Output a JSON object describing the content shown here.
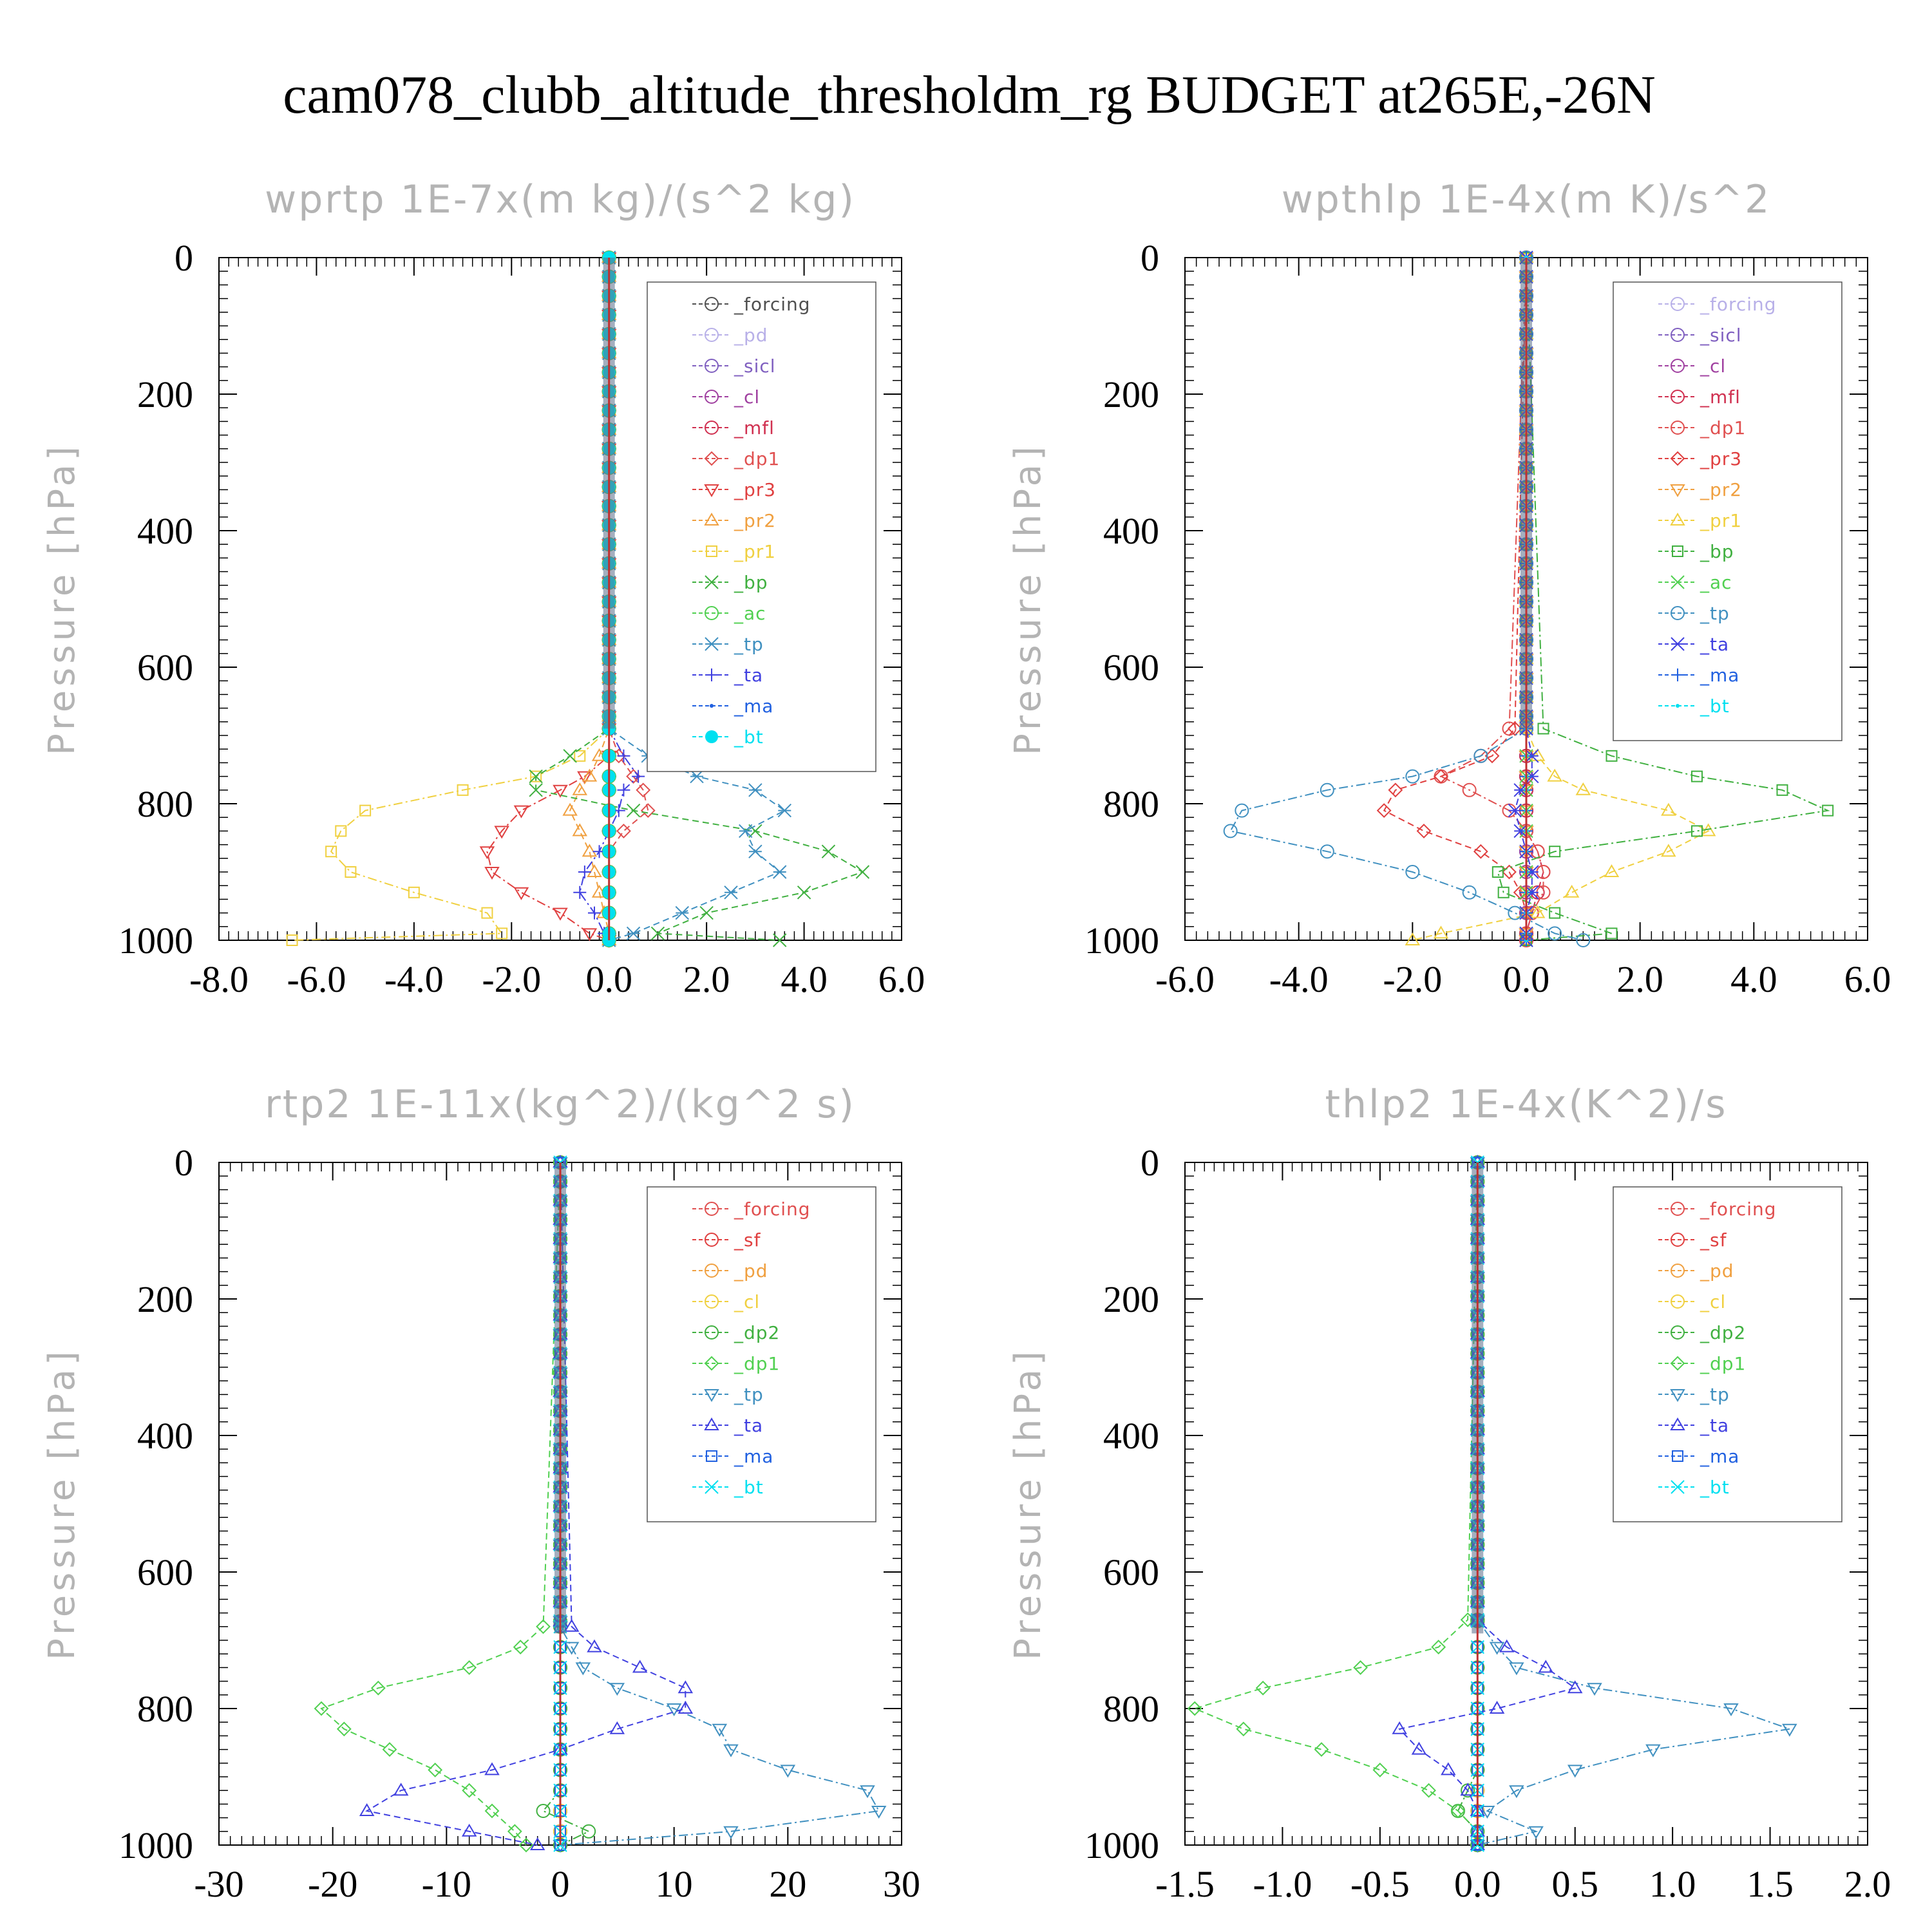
{
  "title": "cam078_clubb_altitude_thresholdm_rg  BUDGET at265E,-26N",
  "chart_data": [
    {
      "type": "line",
      "title": "wprtp  1E-7x(m kg)/(s^2 kg)",
      "ylabel": "Pressure [hPa]",
      "xlim": [
        -8,
        6
      ],
      "ylim": [
        1000,
        0
      ],
      "xticks": [
        "-8.0",
        "-6.0",
        "-4.0",
        "-2.0",
        "0.0",
        "2.0",
        "4.0",
        "6.0"
      ],
      "yticks": [
        "0",
        "200",
        "400",
        "600",
        "800",
        "1000"
      ],
      "y": [
        690,
        730,
        760,
        780,
        810,
        840,
        870,
        900,
        930,
        960,
        990,
        1000
      ],
      "series": [
        {
          "name": "_forcing",
          "color": "#505050",
          "values": [
            0,
            0,
            0,
            0,
            0,
            0,
            0,
            0,
            0,
            0,
            0,
            0
          ]
        },
        {
          "name": "_pd",
          "color": "#b8b0e8",
          "values": [
            0,
            0,
            0,
            0,
            0,
            0,
            0,
            0,
            0,
            0,
            0,
            0
          ]
        },
        {
          "name": "_sicl",
          "color": "#8060c0",
          "values": [
            0,
            0,
            0,
            0,
            0,
            0,
            0,
            0,
            0,
            0,
            0,
            0
          ]
        },
        {
          "name": "_cl",
          "color": "#a040a0",
          "values": [
            0,
            0,
            0,
            0,
            0,
            0,
            0,
            0,
            0,
            0,
            0,
            0
          ]
        },
        {
          "name": "_mfl",
          "color": "#d03050",
          "values": [
            0,
            0,
            0,
            0,
            0,
            0,
            0,
            0,
            0,
            0,
            0,
            0
          ]
        },
        {
          "name": "_dp1",
          "color": "#e05050",
          "values": [
            0,
            0.2,
            0.5,
            0.7,
            0.8,
            0.3,
            0,
            0,
            0,
            0,
            0,
            0
          ]
        },
        {
          "name": "_pr3",
          "color": "#e04040",
          "values": [
            0,
            0,
            -0.5,
            -1.0,
            -1.8,
            -2.2,
            -2.5,
            -2.4,
            -1.8,
            -1.0,
            -0.4,
            0
          ]
        },
        {
          "name": "_pr2",
          "color": "#f0a040",
          "values": [
            0,
            -0.2,
            -0.4,
            -0.6,
            -0.8,
            -0.6,
            -0.4,
            -0.3,
            -0.2,
            -0.1,
            0,
            0
          ]
        },
        {
          "name": "_pr1",
          "color": "#f0d040",
          "values": [
            0,
            -0.6,
            -1.5,
            -3.0,
            -5.0,
            -5.5,
            -5.7,
            -5.3,
            -4.0,
            -2.5,
            -2.2,
            -6.5
          ]
        },
        {
          "name": "_bp",
          "color": "#40b040",
          "values": [
            0,
            -0.8,
            -1.5,
            -1.5,
            0.5,
            3.0,
            4.5,
            5.2,
            4.0,
            2.0,
            1.0,
            3.5
          ]
        },
        {
          "name": "_ac",
          "color": "#50d050",
          "values": [
            0,
            0,
            0,
            0,
            0,
            0,
            0,
            0,
            0,
            0,
            0,
            0
          ]
        },
        {
          "name": "_tp",
          "color": "#4090c0",
          "values": [
            0,
            0.8,
            1.8,
            3.0,
            3.6,
            2.8,
            3.0,
            3.5,
            2.5,
            1.5,
            0.5,
            0
          ]
        },
        {
          "name": "_ta",
          "color": "#4040e0",
          "values": [
            0,
            0.3,
            0.6,
            0.3,
            0.2,
            0,
            -0.2,
            -0.5,
            -0.6,
            -0.3,
            -0.1,
            0
          ]
        },
        {
          "name": "_ma",
          "color": "#2060e0",
          "values": [
            0,
            0,
            0,
            0,
            0,
            0,
            0,
            0,
            0,
            0,
            0,
            0
          ]
        },
        {
          "name": "_bt",
          "color": "#00e0f0",
          "values": [
            0,
            0,
            0,
            0,
            0,
            0,
            0,
            0,
            0,
            0,
            0,
            0
          ]
        }
      ]
    },
    {
      "type": "line",
      "title": "wpthlp  1E-4x(m K)/s^2",
      "ylabel": "Pressure [hPa]",
      "xlim": [
        -6,
        6
      ],
      "ylim": [
        1000,
        0
      ],
      "xticks": [
        "-6.0",
        "-4.0",
        "-2.0",
        "0.0",
        "2.0",
        "4.0",
        "6.0"
      ],
      "yticks": [
        "0",
        "200",
        "400",
        "600",
        "800",
        "1000"
      ],
      "y": [
        690,
        730,
        760,
        780,
        810,
        840,
        870,
        900,
        930,
        960,
        990,
        1000
      ],
      "series": [
        {
          "name": "_forcing",
          "color": "#b8b0e8",
          "values": [
            0,
            0,
            0,
            0,
            0,
            0,
            0,
            0,
            0,
            0,
            0,
            0
          ]
        },
        {
          "name": "_sicl",
          "color": "#8060c0",
          "values": [
            0,
            0,
            0,
            0,
            0,
            0,
            0,
            0,
            0,
            0,
            0,
            0
          ]
        },
        {
          "name": "_cl",
          "color": "#a040a0",
          "values": [
            0,
            0,
            0,
            0,
            0,
            0,
            0,
            0,
            0,
            0,
            0,
            0
          ]
        },
        {
          "name": "_mfl",
          "color": "#d03050",
          "values": [
            0,
            0,
            0,
            0,
            0,
            0,
            0.2,
            0.3,
            0.2,
            0.1,
            0,
            0
          ]
        },
        {
          "name": "_dp1",
          "color": "#e05050",
          "values": [
            -0.3,
            -0.8,
            -1.5,
            -1.0,
            -0.3,
            0,
            0.2,
            0.3,
            0.3,
            0.1,
            0,
            0
          ]
        },
        {
          "name": "_pr3",
          "color": "#e04040",
          "values": [
            -0.2,
            -0.6,
            -1.5,
            -2.3,
            -2.5,
            -1.8,
            -0.8,
            -0.3,
            -0.1,
            0,
            0,
            0
          ]
        },
        {
          "name": "_pr2",
          "color": "#f0a040",
          "values": [
            0,
            0,
            0,
            0,
            0,
            0,
            0,
            0,
            0,
            0,
            0,
            0
          ]
        },
        {
          "name": "_pr1",
          "color": "#f0d040",
          "values": [
            0,
            0.2,
            0.5,
            1.0,
            2.5,
            3.2,
            2.5,
            1.5,
            0.8,
            0.2,
            -1.5,
            -2.0
          ]
        },
        {
          "name": "_bp",
          "color": "#40b040",
          "values": [
            0.3,
            1.5,
            3.0,
            4.5,
            5.3,
            3.0,
            0.5,
            -0.5,
            -0.4,
            0.5,
            1.5,
            0
          ]
        },
        {
          "name": "_ac",
          "color": "#50d050",
          "values": [
            0,
            0,
            0,
            0,
            0,
            0,
            0,
            0,
            0,
            0,
            0,
            0
          ]
        },
        {
          "name": "_tp",
          "color": "#4090c0",
          "values": [
            0,
            -0.8,
            -2.0,
            -3.5,
            -5.0,
            -5.2,
            -3.5,
            -2.0,
            -1.0,
            -0.2,
            0.5,
            1.0
          ]
        },
        {
          "name": "_ta",
          "color": "#4040e0",
          "values": [
            0,
            0.1,
            0.1,
            -0.1,
            -0.2,
            -0.1,
            0,
            0.1,
            0.1,
            0,
            0,
            0
          ]
        },
        {
          "name": "_ma",
          "color": "#2060e0",
          "values": [
            0,
            0,
            0,
            0,
            0,
            0,
            0,
            0,
            0,
            0,
            0,
            0
          ]
        },
        {
          "name": "_bt",
          "color": "#00e0f0",
          "values": [
            0,
            0,
            0,
            0,
            0,
            0,
            0,
            0,
            0,
            0,
            0,
            0
          ]
        }
      ]
    },
    {
      "type": "line",
      "title": "rtp2  1E-11x(kg^2)/(kg^2 s)",
      "ylabel": "Pressure [hPa]",
      "xlim": [
        -30,
        30
      ],
      "ylim": [
        1000,
        0
      ],
      "xticks": [
        "-30",
        "-20",
        "-10",
        "0",
        "10",
        "20",
        "30"
      ],
      "yticks": [
        "0",
        "200",
        "400",
        "600",
        "800",
        "1000"
      ],
      "y": [
        680,
        710,
        740,
        770,
        800,
        830,
        860,
        890,
        920,
        950,
        980,
        1000
      ],
      "series": [
        {
          "name": "_forcing",
          "color": "#e05050",
          "values": [
            0,
            0,
            0,
            0,
            0,
            0,
            0,
            0,
            0,
            0,
            0,
            0
          ]
        },
        {
          "name": "_sf",
          "color": "#e04040",
          "values": [
            0,
            0,
            0,
            0,
            0,
            0,
            0,
            0,
            0,
            0,
            0,
            0
          ]
        },
        {
          "name": "_pd",
          "color": "#f0a040",
          "values": [
            0,
            0,
            0,
            0,
            0,
            0,
            0,
            0,
            0,
            0,
            0,
            0
          ]
        },
        {
          "name": "_cl",
          "color": "#f0d040",
          "values": [
            0,
            0,
            0,
            0,
            0,
            0,
            0,
            0,
            0,
            0,
            0,
            0
          ]
        },
        {
          "name": "_dp2",
          "color": "#40b040",
          "values": [
            0,
            0,
            0,
            0,
            0,
            0,
            0,
            0,
            0,
            -1.5,
            2.5,
            0
          ]
        },
        {
          "name": "_dp1",
          "color": "#50d050",
          "values": [
            -1.5,
            -3.5,
            -8,
            -16,
            -21,
            -19,
            -15,
            -11,
            -8,
            -6,
            -4,
            -3
          ]
        },
        {
          "name": "_tp",
          "color": "#4090c0",
          "values": [
            0,
            1,
            2,
            5,
            10,
            14,
            15,
            20,
            27,
            28,
            15,
            0
          ]
        },
        {
          "name": "_ta",
          "color": "#4040e0",
          "values": [
            1,
            3,
            7,
            11,
            11,
            5,
            0,
            -6,
            -14,
            -17,
            -8,
            -2
          ]
        },
        {
          "name": "_ma",
          "color": "#2060e0",
          "values": [
            0,
            0,
            0,
            0,
            0,
            0,
            0,
            0,
            0,
            0,
            0,
            0
          ]
        },
        {
          "name": "_bt",
          "color": "#00e0f0",
          "values": [
            0,
            0,
            0,
            0,
            0,
            0,
            0,
            0,
            0,
            0,
            0,
            0
          ]
        }
      ]
    },
    {
      "type": "line",
      "title": "thlp2  1E-4x(K^2)/s",
      "ylabel": "Pressure [hPa]",
      "xlim": [
        -1.5,
        2.0
      ],
      "ylim": [
        1000,
        0
      ],
      "xticks": [
        "-1.5",
        "-1.0",
        "-0.5",
        "0.0",
        "0.5",
        "1.0",
        "1.5",
        "2.0"
      ],
      "yticks": [
        "0",
        "200",
        "400",
        "600",
        "800",
        "1000"
      ],
      "y": [
        670,
        710,
        740,
        770,
        800,
        830,
        860,
        890,
        920,
        950,
        980,
        1000
      ],
      "series": [
        {
          "name": "_forcing",
          "color": "#e05050",
          "values": [
            0,
            0,
            0,
            0,
            0,
            0,
            0,
            0,
            0,
            0,
            0,
            0
          ]
        },
        {
          "name": "_sf",
          "color": "#e04040",
          "values": [
            0,
            0,
            0,
            0,
            0,
            0,
            0,
            0,
            0,
            0,
            0,
            0
          ]
        },
        {
          "name": "_pd",
          "color": "#f0a040",
          "values": [
            0,
            0,
            0,
            0,
            0,
            0,
            0,
            0,
            0,
            0,
            0,
            0
          ]
        },
        {
          "name": "_cl",
          "color": "#f0d040",
          "values": [
            0,
            0,
            0,
            0,
            0,
            0,
            0,
            0,
            0,
            0,
            0,
            0
          ]
        },
        {
          "name": "_dp2",
          "color": "#40b040",
          "values": [
            0,
            0,
            0,
            0,
            0,
            0,
            0,
            0,
            -0.05,
            -0.1,
            0,
            0
          ]
        },
        {
          "name": "_dp1",
          "color": "#50d050",
          "values": [
            -0.05,
            -0.2,
            -0.6,
            -1.1,
            -1.45,
            -1.2,
            -0.8,
            -0.5,
            -0.25,
            -0.1,
            0,
            0
          ]
        },
        {
          "name": "_tp",
          "color": "#4090c0",
          "values": [
            0,
            0.1,
            0.2,
            0.6,
            1.3,
            1.6,
            0.9,
            0.5,
            0.2,
            0.05,
            0.3,
            0
          ]
        },
        {
          "name": "_ta",
          "color": "#4040e0",
          "values": [
            0,
            0.15,
            0.35,
            0.5,
            0.1,
            -0.4,
            -0.3,
            -0.15,
            -0.05,
            0,
            0,
            0
          ]
        },
        {
          "name": "_ma",
          "color": "#2060e0",
          "values": [
            0,
            0,
            0,
            0,
            0,
            0,
            0,
            0,
            0,
            0,
            0,
            0
          ]
        },
        {
          "name": "_bt",
          "color": "#00e0f0",
          "values": [
            0,
            0,
            0,
            0,
            0,
            0,
            0,
            0,
            0,
            0,
            0,
            0
          ]
        }
      ]
    }
  ]
}
